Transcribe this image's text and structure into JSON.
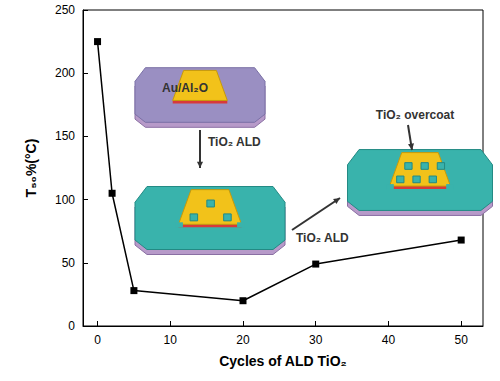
{
  "chart_data": {
    "type": "line",
    "x_label": "Cycles of ALD TiO₂",
    "y_label": "T₅₀%(°C)",
    "x": [
      0,
      2,
      5,
      20,
      30,
      50
    ],
    "values": [
      225,
      105,
      28,
      20,
      49,
      68
    ],
    "color": "#000000",
    "marker": "square",
    "line_style": "solid",
    "xlim": [
      -2,
      53
    ],
    "xticks": [
      0,
      10,
      20,
      30,
      40,
      50
    ],
    "ylim": [
      0,
      250
    ],
    "yticks": [
      0,
      50,
      100,
      150,
      200,
      250
    ],
    "grid": false,
    "annotations": [
      "Au/Al₂O",
      "TiO₂ ALD",
      "TiO₂ ALD",
      "TiO₂ overcoat"
    ]
  }
}
